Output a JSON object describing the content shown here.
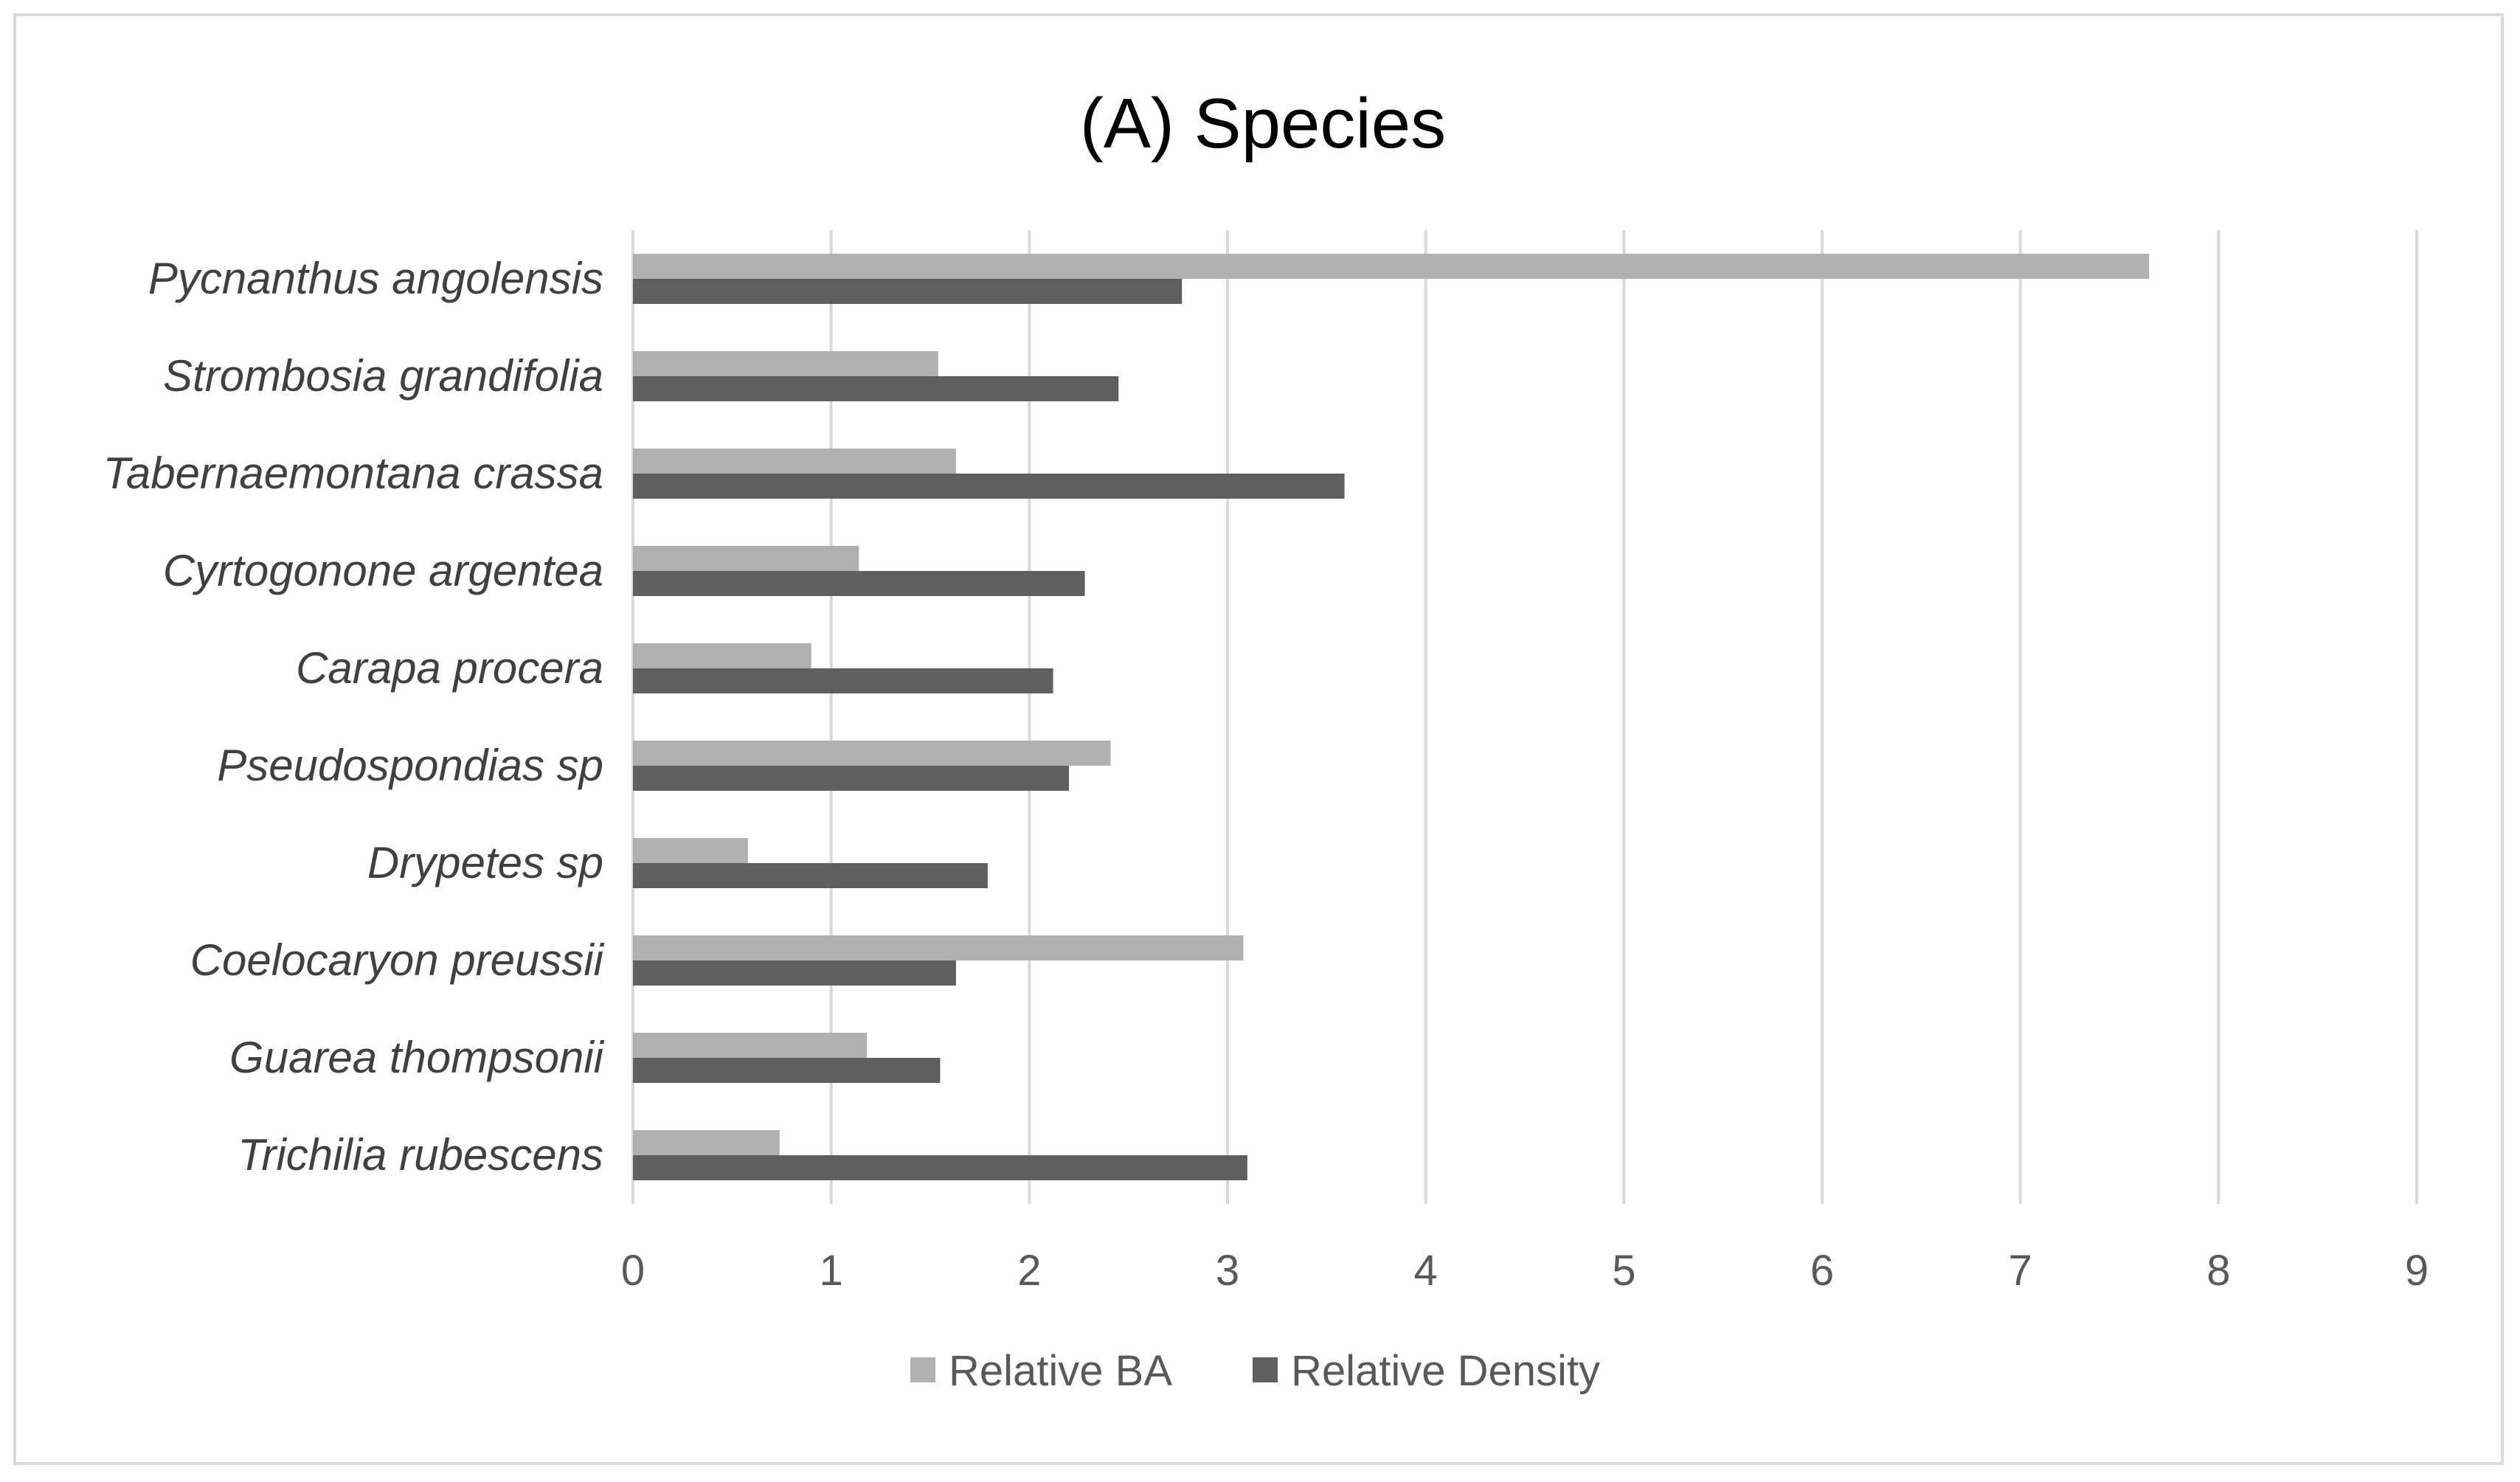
{
  "chart_data": {
    "type": "bar",
    "orientation": "horizontal",
    "title": "(A) Species",
    "xlabel": "",
    "ylabel": "",
    "xlim": [
      0,
      9
    ],
    "x_ticks": [
      0,
      1,
      2,
      3,
      4,
      5,
      6,
      7,
      8,
      9
    ],
    "grid": true,
    "legend_position": "bottom",
    "categories": [
      "Pycnanthus angolensis",
      "Strombosia grandifolia",
      "Tabernaemontana crassa",
      "Cyrtogonone argentea",
      "Carapa procera",
      "Pseudospondias sp",
      "Drypetes sp",
      "Coelocaryon preussii",
      "Guarea thompsonii",
      "Trichilia rubescens"
    ],
    "series": [
      {
        "name": "Relative BA",
        "color": "#b0b0b0",
        "values": [
          7.65,
          1.54,
          1.63,
          1.14,
          0.9,
          2.41,
          0.58,
          3.08,
          1.18,
          0.74
        ]
      },
      {
        "name": "Relative Density",
        "color": "#5f5f5f",
        "values": [
          2.77,
          2.45,
          3.59,
          2.28,
          2.12,
          2.2,
          1.79,
          1.63,
          1.55,
          3.1
        ]
      }
    ]
  }
}
